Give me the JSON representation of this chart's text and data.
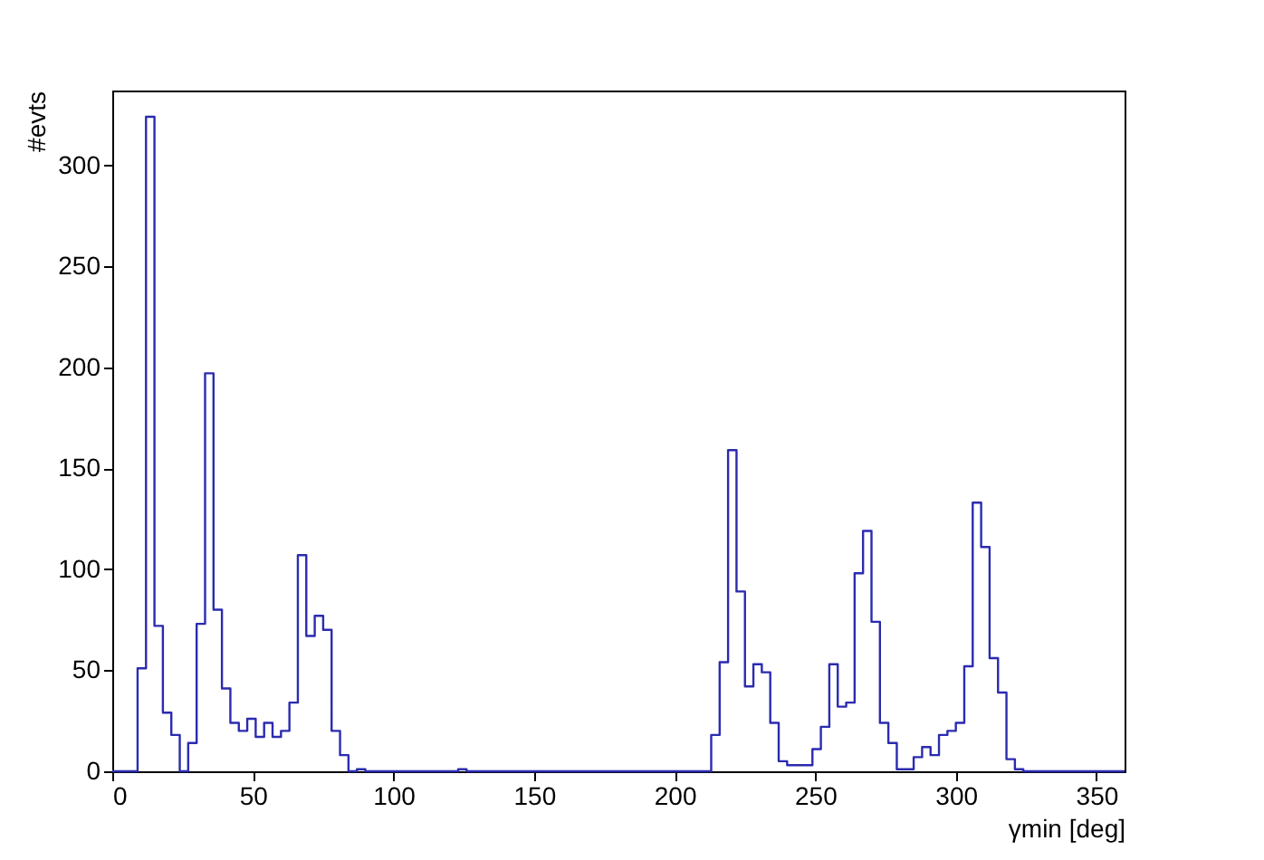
{
  "chart_data": {
    "type": "histogram",
    "xlabel": "γmin [deg]",
    "ylabel": "#evts",
    "color": "#2b2bb0",
    "bins": [
      0,
      3,
      6,
      9,
      12,
      15,
      18,
      21,
      24,
      27,
      30,
      33,
      36,
      39,
      42,
      45,
      48,
      51,
      54,
      57,
      60,
      63,
      66,
      69,
      72,
      75,
      78,
      81,
      84,
      87,
      90,
      93,
      96,
      99,
      102,
      105,
      108,
      111,
      114,
      117,
      120,
      123,
      126,
      129,
      132,
      135,
      138,
      141,
      144,
      147,
      150,
      153,
      156,
      159,
      162,
      165,
      168,
      171,
      174,
      177,
      180,
      183,
      186,
      189,
      192,
      195,
      198,
      201,
      204,
      207,
      210,
      213,
      216,
      219,
      222,
      225,
      228,
      231,
      234,
      237,
      240,
      243,
      246,
      249,
      252,
      255,
      258,
      261,
      264,
      267,
      270,
      273,
      276,
      279,
      282,
      285,
      288,
      291,
      294,
      297,
      300,
      303,
      306,
      309,
      312,
      315,
      318,
      321,
      324,
      327,
      330,
      333,
      336,
      339,
      342,
      345,
      348,
      351,
      354,
      357,
      360
    ],
    "values": [
      0,
      0,
      0,
      51,
      324,
      72,
      29,
      18,
      0,
      14,
      73,
      197,
      80,
      41,
      24,
      20,
      26,
      17,
      24,
      17,
      20,
      34,
      107,
      67,
      77,
      70,
      20,
      8,
      0,
      1,
      0,
      0,
      0,
      0,
      0,
      0,
      0,
      0,
      0,
      0,
      0,
      1,
      0,
      0,
      0,
      0,
      0,
      0,
      0,
      0,
      0,
      0,
      0,
      0,
      0,
      0,
      0,
      0,
      0,
      0,
      0,
      0,
      0,
      0,
      0,
      0,
      0,
      0,
      0,
      0,
      0,
      18,
      54,
      159,
      89,
      42,
      53,
      49,
      24,
      5,
      3,
      3,
      3,
      11,
      22,
      53,
      32,
      34,
      98,
      119,
      74,
      24,
      14,
      1,
      1,
      7,
      12,
      8,
      18,
      20,
      24,
      52,
      133,
      111,
      56,
      39,
      6,
      1,
      0,
      0,
      0,
      0,
      0,
      0,
      0,
      0,
      0,
      0,
      0,
      0
    ],
    "xlim": [
      0,
      360
    ],
    "ylim": [
      0,
      337
    ],
    "xticks": [
      0,
      50,
      100,
      150,
      200,
      250,
      300,
      350
    ],
    "yticks": [
      0,
      50,
      100,
      150,
      200,
      250,
      300
    ]
  }
}
